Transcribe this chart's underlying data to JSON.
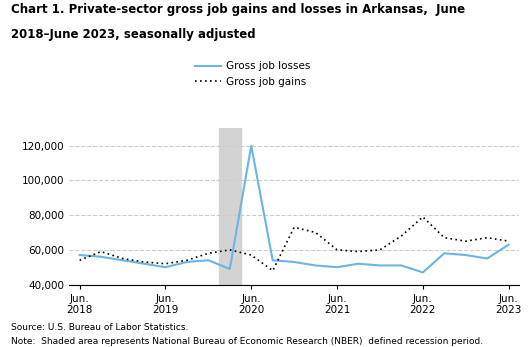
{
  "title_line1": "Chart 1. Private-sector gross job gains and losses in Arkansas,  June",
  "title_line2": "2018–June 2023, seasonally adjusted",
  "source_text": "Source: U.S. Bureau of Labor Statistics.",
  "note_text": "Note:  Shaded area represents National Bureau of Economic Research (NBER)  defined recession period.",
  "recession_start": 7,
  "recession_end": 8,
  "losses_label": "Gross job losses",
  "gains_label": "Gross job gains",
  "losses_color": "#6cb4e4",
  "gains_color": "#000000",
  "ylim": [
    40000,
    130000
  ],
  "yticks": [
    40000,
    60000,
    80000,
    100000,
    120000
  ],
  "ytick_labels": [
    "40,000",
    "60,000",
    "80,000",
    "100,000",
    "120,000"
  ],
  "xtick_positions": [
    0,
    4,
    8,
    12,
    16,
    20
  ],
  "xtick_labels": [
    "Jun.\n2018",
    "Jun.\n2019",
    "Jun.\n2020",
    "Jun.\n2021",
    "Jun.\n2022",
    "Jun.\n2023"
  ],
  "gross_job_losses": [
    57000,
    56000,
    54000,
    52000,
    50000,
    53000,
    54000,
    49000,
    120000,
    54000,
    53000,
    51000,
    50000,
    52000,
    51000,
    51000,
    47000,
    58000,
    57000,
    55000,
    63000
  ],
  "gross_job_gains": [
    54000,
    59000,
    55000,
    53000,
    52000,
    54000,
    58000,
    60000,
    57000,
    48000,
    73000,
    70000,
    60000,
    59000,
    60000,
    68000,
    79000,
    67000,
    65000,
    67000,
    65000
  ],
  "n_quarters": 21,
  "background_color": "#ffffff",
  "grid_color": "#cccccc",
  "recession_color": "#d3d3d3",
  "figsize": [
    5.3,
    3.47
  ],
  "dpi": 100
}
